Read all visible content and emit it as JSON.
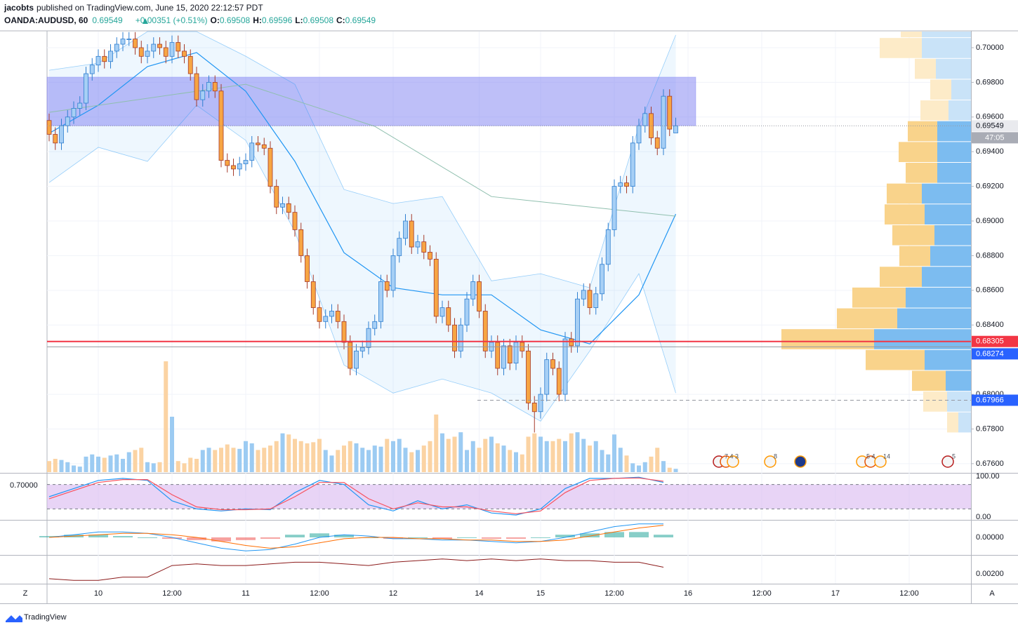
{
  "header": {
    "author": "jacobts",
    "published": "published on TradingView.com, June 15, 2020 22:12:57 PDT"
  },
  "chart_data": {
    "type": "candlestick",
    "symbol": "OANDA:AUDUSD, 60",
    "last": 0.69549,
    "change": "+0.00351 (+0.51%)",
    "ohlc": [
      {
        "label": "O:",
        "value": 0.69508
      },
      {
        "label": "H:",
        "value": 0.69596
      },
      {
        "label": "L:",
        "value": 0.69508
      },
      {
        "label": "C:",
        "value": 0.69549
      }
    ],
    "countdown": "47:05",
    "open": [
      0.6958,
      0.695,
      0.6945,
      0.6955,
      0.696,
      0.6965,
      0.6968,
      0.6985,
      0.699,
      0.6995,
      0.6992,
      0.6998,
      0.7002,
      0.7005,
      0.7005,
      0.7,
      0.6995,
      0.6998,
      0.7002,
      0.7,
      0.6995,
      0.7003,
      0.6998,
      0.6995,
      0.6985,
      0.697,
      0.6975,
      0.698,
      0.6975,
      0.6935,
      0.6932,
      0.693,
      0.6933,
      0.6935,
      0.6945,
      0.6944,
      0.6942,
      0.692,
      0.6908,
      0.691,
      0.6905,
      0.6895,
      0.688,
      0.6865,
      0.685,
      0.6842,
      0.6845,
      0.6848,
      0.6842,
      0.683,
      0.6815,
      0.6825,
      0.6827,
      0.6838,
      0.6842,
      0.6865,
      0.686,
      0.688,
      0.689,
      0.69,
      0.6885,
      0.6888,
      0.6882,
      0.6878,
      0.6845,
      0.685,
      0.684,
      0.6825,
      0.684,
      0.6855,
      0.6865,
      0.6848,
      0.6825,
      0.683,
      0.6815,
      0.6828,
      0.6818,
      0.683,
      0.6825,
      0.6795,
      0.679,
      0.68,
      0.682,
      0.6815,
      0.68,
      0.6832,
      0.6828,
      0.6855,
      0.686,
      0.685,
      0.6858,
      0.6875,
      0.6895,
      0.692,
      0.6922,
      0.692,
      0.6945,
      0.6955,
      0.6962,
      0.6948,
      0.6942,
      0.6972,
      0.69508
    ],
    "high": [
      0.6962,
      0.6954,
      0.6959,
      0.6964,
      0.6969,
      0.6972,
      0.6989,
      0.6994,
      0.6999,
      0.6999,
      0.7002,
      0.7006,
      0.7009,
      0.7009,
      0.7009,
      0.7004,
      0.7002,
      0.7006,
      0.7006,
      0.7004,
      0.7007,
      0.7007,
      0.7002,
      0.6999,
      0.6989,
      0.6979,
      0.6984,
      0.6984,
      0.6979,
      0.6939,
      0.6936,
      0.6937,
      0.6939,
      0.6949,
      0.6949,
      0.6948,
      0.6946,
      0.6924,
      0.6914,
      0.6914,
      0.6909,
      0.6899,
      0.6884,
      0.6869,
      0.6854,
      0.6849,
      0.6852,
      0.6852,
      0.6846,
      0.6834,
      0.6829,
      0.6831,
      0.6842,
      0.6846,
      0.6869,
      0.6869,
      0.6884,
      0.6894,
      0.6904,
      0.6904,
      0.6892,
      0.6892,
      0.6886,
      0.6882,
      0.6854,
      0.6854,
      0.6844,
      0.6844,
      0.6859,
      0.6869,
      0.6869,
      0.6852,
      0.6834,
      0.6834,
      0.6832,
      0.6832,
      0.6834,
      0.6834,
      0.6829,
      0.6799,
      0.6804,
      0.6824,
      0.6824,
      0.6819,
      0.6836,
      0.6836,
      0.6859,
      0.6864,
      0.6864,
      0.6862,
      0.6879,
      0.6899,
      0.6924,
      0.6926,
      0.6926,
      0.6949,
      0.6959,
      0.6966,
      0.6966,
      0.6952,
      0.6976,
      0.6976,
      0.69596
    ],
    "low": [
      0.6946,
      0.6941,
      0.6941,
      0.6951,
      0.6956,
      0.6961,
      0.6964,
      0.6981,
      0.6986,
      0.6988,
      0.6988,
      0.6994,
      0.6998,
      0.7001,
      0.6996,
      0.6991,
      0.6991,
      0.6994,
      0.6996,
      0.6991,
      0.6991,
      0.6994,
      0.6991,
      0.6981,
      0.6966,
      0.6966,
      0.6971,
      0.6971,
      0.6931,
      0.6928,
      0.6926,
      0.6926,
      0.6929,
      0.6931,
      0.694,
      0.6938,
      0.6916,
      0.6904,
      0.6904,
      0.6901,
      0.6891,
      0.6876,
      0.6861,
      0.6846,
      0.6838,
      0.6838,
      0.6841,
      0.6838,
      0.6826,
      0.6811,
      0.6811,
      0.6821,
      0.6823,
      0.6834,
      0.6838,
      0.6856,
      0.6856,
      0.6876,
      0.6886,
      0.6881,
      0.6881,
      0.6878,
      0.6874,
      0.6841,
      0.6841,
      0.6836,
      0.6821,
      0.6821,
      0.6836,
      0.6851,
      0.6844,
      0.6821,
      0.6821,
      0.6811,
      0.6811,
      0.6814,
      0.6814,
      0.6821,
      0.6791,
      0.6778,
      0.6786,
      0.6796,
      0.6811,
      0.6796,
      0.6796,
      0.6824,
      0.6824,
      0.6851,
      0.6846,
      0.6846,
      0.6854,
      0.6871,
      0.6891,
      0.6916,
      0.6916,
      0.6916,
      0.6941,
      0.6951,
      0.6944,
      0.6938,
      0.6938,
      0.6949,
      0.69508
    ],
    "close": [
      0.695,
      0.6945,
      0.6955,
      0.696,
      0.6965,
      0.6968,
      0.6985,
      0.699,
      0.6995,
      0.6992,
      0.6998,
      0.7002,
      0.7005,
      0.7005,
      0.7,
      0.6995,
      0.6998,
      0.7002,
      0.7,
      0.6995,
      0.7003,
      0.6998,
      0.6995,
      0.6985,
      0.697,
      0.6975,
      0.698,
      0.6975,
      0.6935,
      0.6932,
      0.693,
      0.6933,
      0.6935,
      0.6945,
      0.6944,
      0.6942,
      0.692,
      0.6908,
      0.691,
      0.6905,
      0.6895,
      0.688,
      0.6865,
      0.685,
      0.6842,
      0.6845,
      0.6848,
      0.6842,
      0.683,
      0.6815,
      0.6825,
      0.6827,
      0.6838,
      0.6842,
      0.6865,
      0.686,
      0.688,
      0.689,
      0.69,
      0.6885,
      0.6888,
      0.6882,
      0.6878,
      0.6845,
      0.685,
      0.684,
      0.6825,
      0.684,
      0.6855,
      0.6865,
      0.6848,
      0.6825,
      0.683,
      0.6815,
      0.6828,
      0.6818,
      0.683,
      0.6825,
      0.6795,
      0.679,
      0.68,
      0.682,
      0.6815,
      0.68,
      0.6832,
      0.6828,
      0.6855,
      0.686,
      0.685,
      0.6858,
      0.6875,
      0.6895,
      0.692,
      0.6922,
      0.692,
      0.6945,
      0.6955,
      0.6962,
      0.6948,
      0.6942,
      0.6972,
      0.6953,
      0.69549
    ],
    "volume": [
      10,
      12,
      11,
      9,
      6,
      5,
      14,
      16,
      14,
      13,
      15,
      16,
      12,
      18,
      20,
      22,
      9,
      8,
      9,
      100,
      50,
      10,
      8,
      13,
      12,
      20,
      22,
      20,
      22,
      25,
      22,
      21,
      28,
      26,
      20,
      22,
      24,
      28,
      35,
      34,
      30,
      28,
      26,
      27,
      30,
      20,
      15,
      20,
      24,
      28,
      26,
      22,
      20,
      24,
      23,
      30,
      28,
      30,
      22,
      18,
      20,
      24,
      28,
      52,
      35,
      30,
      32,
      36,
      20,
      28,
      22,
      30,
      32,
      26,
      24,
      20,
      18,
      16,
      32,
      35,
      32,
      28,
      28,
      30,
      28,
      35,
      36,
      30,
      24,
      28,
      20,
      16,
      34,
      22,
      15,
      8,
      6,
      9,
      14,
      22,
      10,
      4,
      3
    ],
    "up_color": "#a6cff5",
    "up_border": "#2f7fd0",
    "down_color": "#f7a543",
    "down_border": "#a63b2b",
    "volume_up_color": "#9ccbf2",
    "volume_down_color": "#fbd3a3",
    "ylim": [
      0.67551,
      0.70097
    ],
    "yticks": [
      {
        "value": 0.7,
        "label": "0.70000"
      },
      {
        "value": 0.698,
        "label": "0.69800"
      },
      {
        "value": 0.696,
        "label": "0.69600"
      },
      {
        "value": 0.694,
        "label": "0.69400"
      },
      {
        "value": 0.692,
        "label": "0.69200"
      },
      {
        "value": 0.69,
        "label": "0.69000"
      },
      {
        "value": 0.688,
        "label": "0.68800"
      },
      {
        "value": 0.686,
        "label": "0.68600"
      },
      {
        "value": 0.684,
        "label": "0.68400"
      },
      {
        "value": 0.68,
        "label": "0.68000"
      },
      {
        "value": 0.678,
        "label": "0.67800"
      },
      {
        "value": 0.676,
        "label": "0.67600"
      }
    ],
    "xticks": [
      {
        "value": 8,
        "label": "10"
      },
      {
        "value": 20,
        "label": "12:00"
      },
      {
        "value": 32,
        "label": "11"
      },
      {
        "value": 44,
        "label": "12:00"
      },
      {
        "value": 56,
        "label": "12"
      },
      {
        "value": 70,
        "label": "14"
      },
      {
        "value": 80,
        "label": "15"
      },
      {
        "value": 92,
        "label": "12:00"
      },
      {
        "value": 104,
        "label": "16"
      },
      {
        "value": 116,
        "label": "12:00"
      },
      {
        "value": 128,
        "label": "17"
      },
      {
        "value": 140,
        "label": "12:00"
      }
    ],
    "grid": true,
    "bands": {
      "index": [
        0,
        8,
        16,
        24,
        32,
        40,
        48,
        56,
        64,
        72,
        80,
        88,
        96,
        102
      ],
      "upper": [
        0.6987,
        0.69911,
        0.70093,
        0.70093,
        0.69951,
        0.69789,
        0.69182,
        0.69101,
        0.69141,
        0.68655,
        0.68696,
        0.68615,
        0.69546,
        0.70073
      ],
      "middle": [
        0.69506,
        0.69668,
        0.69891,
        0.69972,
        0.69749,
        0.69344,
        0.68817,
        0.68615,
        0.68574,
        0.68574,
        0.68372,
        0.68291,
        0.68574,
        0.6904
      ],
      "lower": [
        0.69222,
        0.69425,
        0.69344,
        0.69668,
        0.69465,
        0.68939,
        0.68169,
        0.68007,
        0.68088,
        0.68007,
        0.67845,
        0.6825,
        0.68696,
        0.68007
      ],
      "color": "#2196f3"
    },
    "slow_ma": {
      "index": [
        0,
        32,
        53,
        72,
        102
      ],
      "values": [
        0.69627,
        0.69789,
        0.69546,
        0.69141,
        0.69028
      ],
      "color": "#8fbfae"
    },
    "zone": {
      "top": 0.6983,
      "bottom": 0.6955,
      "color": "#7d80f2"
    },
    "levels": [
      {
        "value": 0.68305,
        "color": "#f23645",
        "line_color": "#f23645",
        "dashed": false
      },
      {
        "value": 0.68274,
        "color": "#2962ff",
        "line_color": "#9598a1",
        "dashed": false
      },
      {
        "value": 0.67966,
        "color": "#2962ff",
        "line_color": "#9598a1",
        "dashed": true
      }
    ],
    "volume_profile": {
      "bins": [
        0.67776,
        0.67896,
        0.68016,
        0.68136,
        0.68256,
        0.68376,
        0.68496,
        0.68616,
        0.68736,
        0.68856,
        0.68976,
        0.69096,
        0.69216,
        0.69336,
        0.69456,
        0.69576,
        0.69696,
        0.69816,
        0.69936,
        0.70056,
        0.70176
      ],
      "up": [
        18,
        34,
        36,
        66,
        138,
        105,
        93,
        70,
        58,
        52,
        66,
        70,
        48,
        48,
        48,
        32,
        28,
        50,
        70,
        70
      ],
      "down": [
        16,
        34,
        48,
        84,
        132,
        86,
        76,
        60,
        44,
        60,
        57,
        50,
        45,
        55,
        42,
        40,
        30,
        30,
        60,
        30
      ],
      "value_area": [
        0.68016,
        0.69576
      ],
      "up_color": "#7cbcf0",
      "down_color": "#f9d38b",
      "up_faint": "#c9e3f8",
      "down_faint": "#fdebc8"
    },
    "sub_index": [
      0,
      4,
      8,
      12,
      16,
      20,
      24,
      28,
      32,
      36,
      40,
      44,
      48,
      52,
      56,
      60,
      64,
      68,
      72,
      76,
      80,
      84,
      88,
      92,
      96,
      100
    ],
    "stoch": {
      "left_label": "0.70000",
      "ylim": [
        -5.2,
        106.9
      ],
      "yticks": [
        {
          "value": 100,
          "label": "100.00"
        },
        {
          "value": 0,
          "label": "0.00"
        }
      ],
      "bands": [
        20,
        80
      ],
      "fill": "#d9b8f0",
      "series": [
        {
          "color": "#2196f3",
          "values": [
            50,
            70,
            90,
            95,
            90,
            40,
            20,
            15,
            20,
            18,
            60,
            90,
            80,
            30,
            15,
            40,
            20,
            30,
            10,
            5,
            20,
            70,
            95,
            95,
            98,
            85
          ]
        },
        {
          "color": "#f7525f",
          "values": [
            45,
            65,
            85,
            92,
            92,
            55,
            25,
            18,
            18,
            20,
            50,
            85,
            85,
            45,
            20,
            35,
            25,
            25,
            15,
            8,
            15,
            60,
            90,
            95,
            96,
            88
          ]
        }
      ]
    },
    "macd": {
      "ylim": [
        -0.00125,
        0.00125
      ],
      "yticks": [
        {
          "value": 0,
          "label": "0.00000"
        }
      ],
      "histogram": [
        0.0001,
        0.0002,
        0.0002,
        0.0001,
        0,
        -0.0001,
        -0.0002,
        -0.0003,
        -0.0002,
        -0.0001,
        0.0002,
        0.0003,
        0.0002,
        0,
        -0.0001,
        0,
        -0.0001,
        0,
        -0.0001,
        -0.0001,
        0,
        0.0002,
        0.0003,
        0.0004,
        0.0004,
        0.0002
      ],
      "positive_color": "#26a69a",
      "negative_color": "#ef5350",
      "series": [
        {
          "color": "#2196f3",
          "values": [
            0,
            0.0002,
            0.0004,
            0.0004,
            0.0003,
            0,
            -0.0004,
            -0.0008,
            -0.001,
            -0.0009,
            -0.0005,
            0,
            0.0002,
            0.0001,
            -0.0001,
            -0.0001,
            -0.0002,
            -0.0002,
            -0.0003,
            -0.0004,
            -0.0003,
            0,
            0.0004,
            0.0008,
            0.001,
            0.001
          ]
        },
        {
          "color": "#ff6d00",
          "values": [
            0,
            0.0001,
            0.0002,
            0.0003,
            0.0003,
            0.0002,
            0,
            -0.0003,
            -0.0006,
            -0.0008,
            -0.0007,
            -0.0004,
            -0.0001,
            0,
            0,
            -0.0001,
            -0.0001,
            -0.0002,
            -0.0002,
            -0.0003,
            -0.0003,
            -0.0002,
            0.0001,
            0.0004,
            0.0007,
            0.0009
          ]
        }
      ]
    },
    "atr": {
      "ylim": [
        0.0014,
        0.0031
      ],
      "yticks": [
        {
          "value": 0.002,
          "label": "0.00200"
        }
      ],
      "color": "#8b1a1a",
      "values": [
        0.0017,
        0.0016,
        0.0016,
        0.0018,
        0.0018,
        0.0025,
        0.0026,
        0.0025,
        0.0025,
        0.0026,
        0.0027,
        0.0027,
        0.0026,
        0.0025,
        0.0027,
        0.0028,
        0.0029,
        0.0028,
        0.0029,
        0.0028,
        0.0029,
        0.0028,
        0.0028,
        0.0027,
        0.0027,
        0.0024
      ]
    }
  },
  "events": [
    "7 4 3",
    "8",
    "5 4",
    "14",
    "5"
  ],
  "footer": {
    "scale": "Z",
    "brand": "TradingView"
  }
}
